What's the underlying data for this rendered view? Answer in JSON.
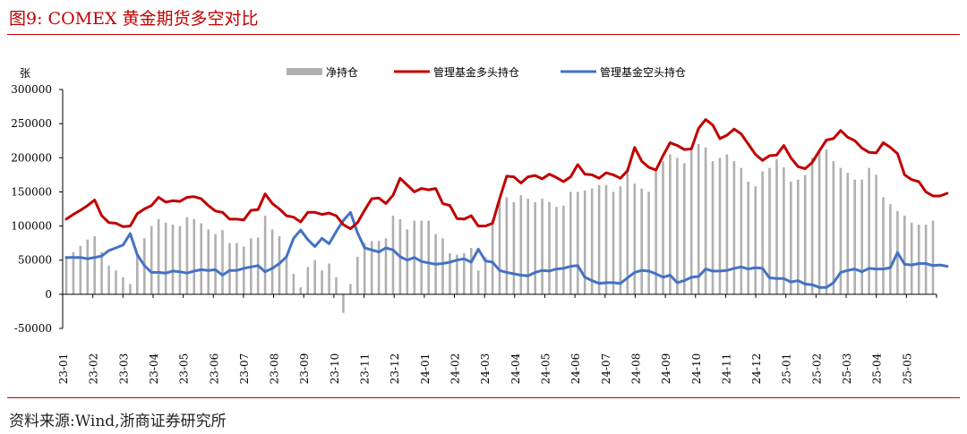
{
  "figure": {
    "title": "图9:  COMEX 黄金期货多空对比",
    "source": "资料来源:Wind,浙商证券研究所"
  },
  "chart_data": {
    "type": "bar+line",
    "ylabel": "张",
    "ylim": [
      -50000,
      300000
    ],
    "yticks": [
      -50000,
      0,
      50000,
      100000,
      150000,
      200000,
      250000,
      300000
    ],
    "grid": false,
    "legend": "top",
    "x_tick_labels": [
      "23-01",
      "23-02",
      "23-03",
      "23-04",
      "23-05",
      "23-06",
      "23-07",
      "23-08",
      "23-09",
      "23-10",
      "23-11",
      "23-12",
      "24-01",
      "24-02",
      "24-03",
      "24-04",
      "24-05",
      "24-06",
      "24-07",
      "24-08",
      "24-09",
      "24-10",
      "24-11",
      "24-12",
      "25-01",
      "25-02",
      "25-03",
      "25-04",
      "25-05"
    ],
    "series": [
      {
        "name": "净持仓",
        "kind": "bar",
        "color": "#b0b0b0",
        "values": [
          55000,
          62000,
          71000,
          80000,
          85000,
          62000,
          42000,
          35000,
          25000,
          15000,
          60000,
          82000,
          100000,
          110000,
          105000,
          102000,
          100000,
          113000,
          110000,
          104000,
          95000,
          88000,
          94000,
          75000,
          75000,
          70000,
          82000,
          83000,
          115000,
          95000,
          85000,
          55000,
          30000,
          10000,
          40000,
          50000,
          35000,
          45000,
          25000,
          -27000,
          15000,
          55000,
          75000,
          78000,
          78000,
          82000,
          115000,
          110000,
          95000,
          108000,
          108000,
          108000,
          88000,
          82000,
          60000,
          58000,
          60000,
          68000,
          35000,
          55000,
          110000,
          140000,
          142000,
          135000,
          145000,
          140000,
          135000,
          140000,
          135000,
          128000,
          130000,
          150000,
          150000,
          152000,
          155000,
          160000,
          160000,
          150000,
          158000,
          185000,
          162000,
          155000,
          150000,
          180000,
          195000,
          205000,
          200000,
          192000,
          215000,
          220000,
          215000,
          195000,
          200000,
          205000,
          195000,
          185000,
          165000,
          158000,
          180000,
          185000,
          198000,
          186000,
          165000,
          168000,
          175000,
          200000,
          212000,
          212000,
          195000,
          185000,
          178000,
          168000,
          168000,
          185000,
          175000,
          142000,
          132000,
          122000,
          115000,
          105000,
          102000,
          102000,
          108000
        ]
      },
      {
        "name": "管理基金多头持仓",
        "kind": "line",
        "color": "#c00000",
        "values": [
          110000,
          117000,
          123000,
          130000,
          138000,
          115000,
          105000,
          104000,
          99000,
          100000,
          118000,
          125000,
          130000,
          142000,
          135000,
          137000,
          136000,
          142000,
          143000,
          140000,
          130000,
          122000,
          120000,
          110000,
          110000,
          109000,
          123000,
          124000,
          147000,
          133000,
          125000,
          115000,
          113000,
          106000,
          120000,
          120000,
          117000,
          119000,
          115000,
          102000,
          96000,
          105000,
          123000,
          140000,
          141000,
          133000,
          145000,
          170000,
          160000,
          150000,
          155000,
          153000,
          155000,
          133000,
          130000,
          111000,
          110000,
          115000,
          100000,
          100000,
          104000,
          140000,
          173000,
          172000,
          163000,
          172000,
          174000,
          169000,
          176000,
          171000,
          165000,
          172000,
          190000,
          176000,
          175000,
          170000,
          178000,
          175000,
          170000,
          181000,
          215000,
          195000,
          186000,
          182000,
          203000,
          222000,
          218000,
          212000,
          213000,
          243000,
          256000,
          248000,
          228000,
          233000,
          242000,
          235000,
          220000,
          205000,
          196000,
          203000,
          204000,
          218000,
          200000,
          187000,
          184000,
          193000,
          210000,
          226000,
          228000,
          240000,
          230000,
          225000,
          214000,
          208000,
          207000,
          222000,
          215000,
          206000,
          175000,
          168000,
          165000,
          150000,
          144000,
          144000,
          148000
        ]
      },
      {
        "name": "管理基金空头持仓",
        "kind": "line",
        "color": "#4472c4",
        "values": [
          54000,
          54000,
          54000,
          52000,
          54000,
          56000,
          64000,
          68000,
          72000,
          89000,
          58000,
          42000,
          32000,
          32000,
          31000,
          34000,
          33000,
          31000,
          34000,
          36000,
          35000,
          36000,
          28000,
          35000,
          35000,
          38000,
          40000,
          42000,
          33000,
          38000,
          45000,
          55000,
          82000,
          94000,
          80000,
          70000,
          82000,
          74000,
          92000,
          108000,
          120000,
          90000,
          68000,
          65000,
          62000,
          68000,
          65000,
          55000,
          50000,
          54000,
          48000,
          46000,
          44000,
          45000,
          47000,
          50000,
          52000,
          47000,
          66000,
          49000,
          47000,
          35000,
          32000,
          30000,
          28000,
          27000,
          32000,
          35000,
          34000,
          37000,
          38000,
          41000,
          42000,
          25000,
          20000,
          16000,
          17000,
          17000,
          16000,
          24000,
          32000,
          35000,
          34000,
          30000,
          25000,
          28000,
          17000,
          20000,
          25000,
          26000,
          37000,
          34000,
          34000,
          35000,
          38000,
          40000,
          37000,
          39000,
          38000,
          24000,
          23000,
          23000,
          18000,
          20000,
          15000,
          14000,
          10000,
          10000,
          17000,
          32000,
          35000,
          37000,
          33000,
          38000,
          37000,
          37000,
          39000,
          61000,
          44000,
          43000,
          45000,
          45000,
          42000,
          43000,
          41000
        ]
      }
    ]
  }
}
